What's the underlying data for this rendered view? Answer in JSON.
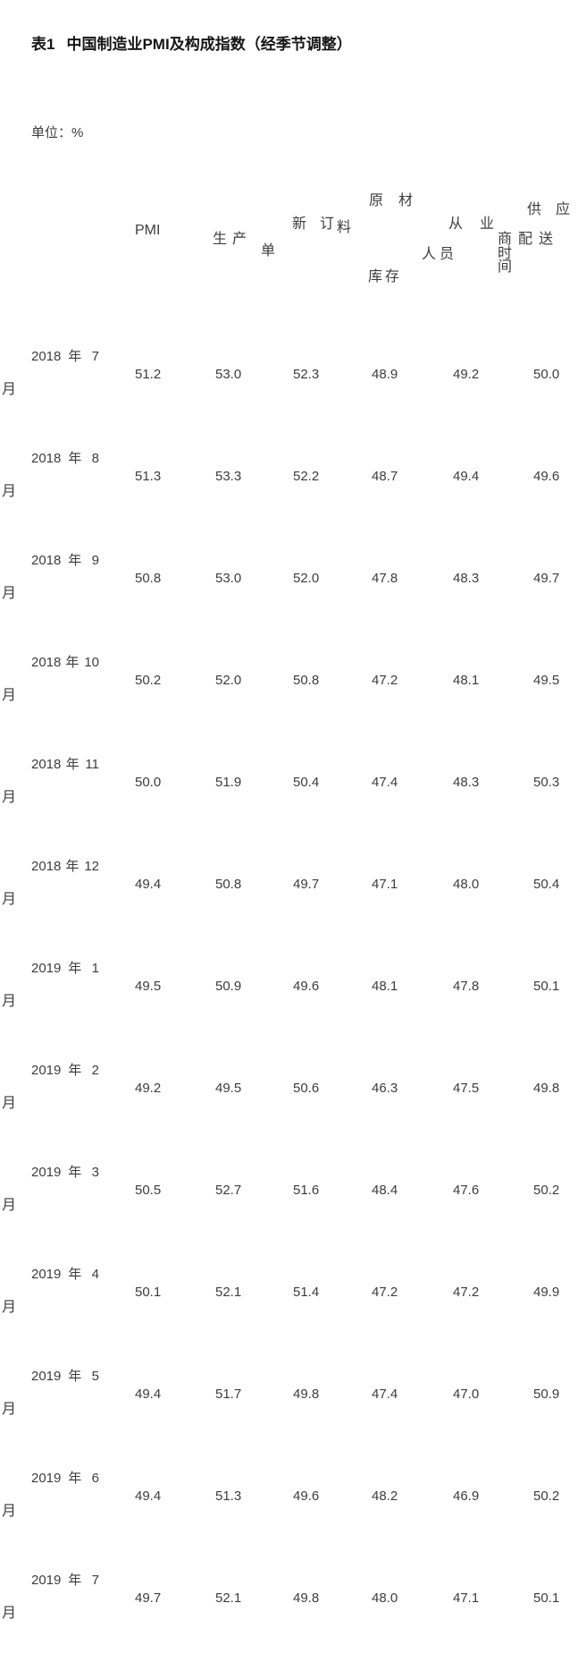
{
  "title": {
    "prefix": "表1",
    "main": "中国制造业PMI及构成指数（经季节调整）"
  },
  "unit_label": "单位：%",
  "text_color": "#3d3d3d",
  "background_color": "#ffffff",
  "table": {
    "header": [
      {
        "label": "PMI",
        "lines": [
          "PMI"
        ]
      },
      {
        "label": "生产",
        "lines": [
          "生产"
        ]
      },
      {
        "label": "新订单",
        "lines": [
          "新 订",
          "单"
        ]
      },
      {
        "label": "原材料库存",
        "lines": [
          "原 材",
          "料",
          "库存"
        ]
      },
      {
        "label": "从业人员",
        "lines": [
          "从 业",
          "人员"
        ]
      },
      {
        "label": "供应商配送时间",
        "lines": [
          "供 应",
          "商配送时",
          "间"
        ]
      }
    ],
    "rows": [
      {
        "label_lines": [
          "2018 年 7",
          "月"
        ],
        "values": [
          "51.2",
          "53.0",
          "52.3",
          "48.9",
          "49.2",
          "50.0"
        ]
      },
      {
        "label_lines": [
          "2018 年 8",
          "月"
        ],
        "values": [
          "51.3",
          "53.3",
          "52.2",
          "48.7",
          "49.4",
          "49.6"
        ]
      },
      {
        "label_lines": [
          "2018 年 9",
          "月"
        ],
        "values": [
          "50.8",
          "53.0",
          "52.0",
          "47.8",
          "48.3",
          "49.7"
        ]
      },
      {
        "label_lines": [
          "2018 年 10",
          "月"
        ],
        "values": [
          "50.2",
          "52.0",
          "50.8",
          "47.2",
          "48.1",
          "49.5"
        ]
      },
      {
        "label_lines": [
          "2018 年 11",
          "月"
        ],
        "values": [
          "50.0",
          "51.9",
          "50.4",
          "47.4",
          "48.3",
          "50.3"
        ]
      },
      {
        "label_lines": [
          "2018 年 12",
          "月"
        ],
        "values": [
          "49.4",
          "50.8",
          "49.7",
          "47.1",
          "48.0",
          "50.4"
        ]
      },
      {
        "label_lines": [
          "2019 年 1",
          "月"
        ],
        "values": [
          "49.5",
          "50.9",
          "49.6",
          "48.1",
          "47.8",
          "50.1"
        ]
      },
      {
        "label_lines": [
          "2019 年 2",
          "月"
        ],
        "values": [
          "49.2",
          "49.5",
          "50.6",
          "46.3",
          "47.5",
          "49.8"
        ]
      },
      {
        "label_lines": [
          "2019 年 3",
          "月"
        ],
        "values": [
          "50.5",
          "52.7",
          "51.6",
          "48.4",
          "47.6",
          "50.2"
        ]
      },
      {
        "label_lines": [
          "2019 年 4",
          "月"
        ],
        "values": [
          "50.1",
          "52.1",
          "51.4",
          "47.2",
          "47.2",
          "49.9"
        ]
      },
      {
        "label_lines": [
          "2019 年 5",
          "月"
        ],
        "values": [
          "49.4",
          "51.7",
          "49.8",
          "47.4",
          "47.0",
          "50.9"
        ]
      },
      {
        "label_lines": [
          "2019 年 6",
          "月"
        ],
        "values": [
          "49.4",
          "51.3",
          "49.6",
          "48.2",
          "46.9",
          "50.2"
        ]
      },
      {
        "label_lines": [
          "2019 年 7",
          "月"
        ],
        "values": [
          "49.7",
          "52.1",
          "49.8",
          "48.0",
          "47.1",
          "50.1"
        ]
      }
    ]
  }
}
